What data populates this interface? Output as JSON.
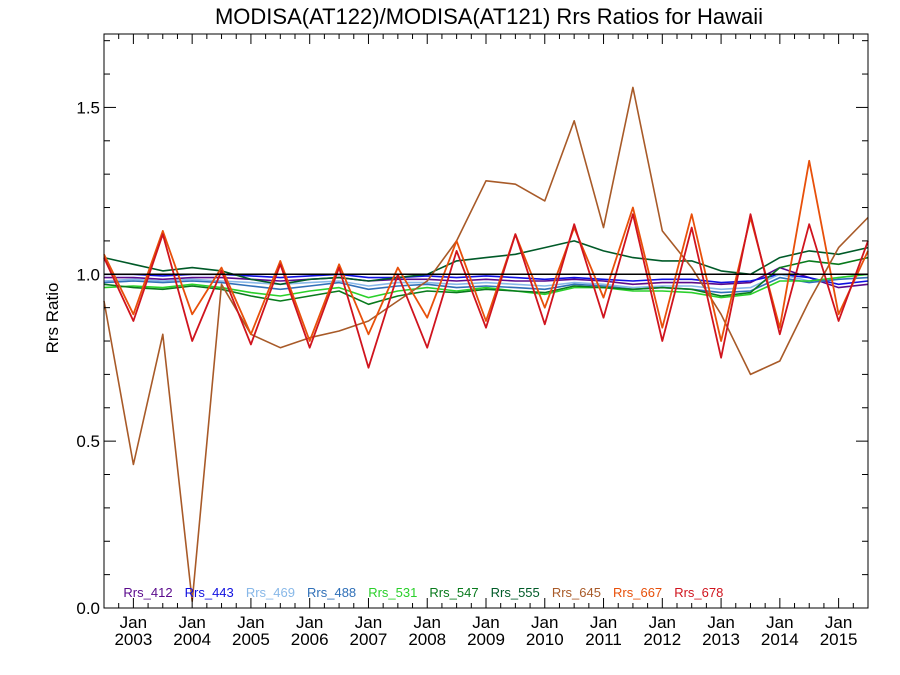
{
  "chart_data": {
    "type": "line",
    "title": "MODISA(AT122)/MODISA(AT121)  Rrs Ratios for Hawaii",
    "xlabel": "",
    "ylabel": "Rrs Ratio",
    "xlim": [
      "2002-07",
      "2015-07"
    ],
    "ylim": [
      0.0,
      1.72
    ],
    "grid": false,
    "legend_position": "bottom",
    "reference_line": 1.0,
    "x_ticks": [
      {
        "x": "2003-01",
        "top": "Jan",
        "bottom": "2003"
      },
      {
        "x": "2004-01",
        "top": "Jan",
        "bottom": "2004"
      },
      {
        "x": "2005-01",
        "top": "Jan",
        "bottom": "2005"
      },
      {
        "x": "2006-01",
        "top": "Jan",
        "bottom": "2006"
      },
      {
        "x": "2007-01",
        "top": "Jan",
        "bottom": "2007"
      },
      {
        "x": "2008-01",
        "top": "Jan",
        "bottom": "2008"
      },
      {
        "x": "2009-01",
        "top": "Jan",
        "bottom": "2009"
      },
      {
        "x": "2010-01",
        "top": "Jan",
        "bottom": "2010"
      },
      {
        "x": "2011-01",
        "top": "Jan",
        "bottom": "2011"
      },
      {
        "x": "2012-01",
        "top": "Jan",
        "bottom": "2012"
      },
      {
        "x": "2013-01",
        "top": "Jan",
        "bottom": "2013"
      },
      {
        "x": "2014-01",
        "top": "Jan",
        "bottom": "2014"
      },
      {
        "x": "2015-01",
        "top": "Jan",
        "bottom": "2015"
      }
    ],
    "y_ticks": [
      {
        "value": 0.0,
        "label": "0.0"
      },
      {
        "value": 0.5,
        "label": "0.5"
      },
      {
        "value": 1.0,
        "label": "1.0"
      },
      {
        "value": 1.5,
        "label": "1.5"
      }
    ],
    "x": [
      "2002-07",
      "2003-01",
      "2003-07",
      "2004-01",
      "2004-07",
      "2005-01",
      "2005-07",
      "2006-01",
      "2006-07",
      "2007-01",
      "2007-07",
      "2008-01",
      "2008-07",
      "2009-01",
      "2009-07",
      "2010-01",
      "2010-07",
      "2011-01",
      "2011-07",
      "2012-01",
      "2012-07",
      "2013-01",
      "2013-07",
      "2014-01",
      "2014-07",
      "2015-01",
      "2015-07"
    ],
    "series": [
      {
        "name": "Rrs_412",
        "color": "#5a0a8c",
        "width": 1.6,
        "values": [
          0.99,
          0.99,
          0.985,
          0.99,
          0.99,
          0.985,
          0.98,
          0.985,
          0.99,
          0.98,
          0.985,
          0.985,
          0.98,
          0.985,
          0.98,
          0.98,
          0.985,
          0.98,
          0.97,
          0.975,
          0.975,
          0.97,
          0.975,
          1.02,
          0.99,
          0.96,
          0.97
        ]
      },
      {
        "name": "Rrs_443",
        "color": "#1010e0",
        "width": 1.6,
        "values": [
          1.0,
          1.0,
          0.995,
          1.0,
          1.0,
          0.995,
          0.99,
          0.995,
          1.0,
          0.99,
          0.99,
          0.995,
          0.99,
          0.995,
          0.99,
          0.985,
          0.99,
          0.985,
          0.98,
          0.985,
          0.985,
          0.975,
          0.98,
          1.0,
          0.99,
          0.97,
          0.98
        ]
      },
      {
        "name": "Rrs_469",
        "color": "#88b8e8",
        "width": 1.6,
        "values": [
          0.98,
          0.985,
          0.98,
          0.985,
          0.98,
          0.975,
          0.97,
          0.975,
          0.98,
          0.965,
          0.975,
          0.975,
          0.97,
          0.975,
          0.97,
          0.965,
          0.975,
          0.97,
          0.96,
          0.965,
          0.965,
          0.955,
          0.96,
          1.0,
          0.98,
          0.99,
          1.0
        ]
      },
      {
        "name": "Rrs_488",
        "color": "#3070b8",
        "width": 1.6,
        "values": [
          0.975,
          0.98,
          0.975,
          0.98,
          0.975,
          0.965,
          0.955,
          0.965,
          0.975,
          0.955,
          0.965,
          0.97,
          0.96,
          0.965,
          0.96,
          0.955,
          0.97,
          0.965,
          0.955,
          0.96,
          0.955,
          0.945,
          0.95,
          0.99,
          0.975,
          0.985,
          0.99
        ]
      },
      {
        "name": "Rrs_531",
        "color": "#2ad02a",
        "width": 1.6,
        "values": [
          0.96,
          0.965,
          0.96,
          0.97,
          0.96,
          0.945,
          0.935,
          0.95,
          0.96,
          0.93,
          0.95,
          0.96,
          0.95,
          0.96,
          0.95,
          0.94,
          0.96,
          0.96,
          0.95,
          0.95,
          0.945,
          0.93,
          0.94,
          0.98,
          0.98,
          0.99,
          1.0
        ]
      },
      {
        "name": "Rrs_547",
        "color": "#087a1c",
        "width": 1.6,
        "values": [
          0.97,
          0.96,
          0.955,
          0.965,
          0.955,
          0.935,
          0.92,
          0.935,
          0.95,
          0.91,
          0.935,
          0.95,
          0.945,
          0.955,
          0.95,
          0.945,
          0.965,
          0.96,
          0.955,
          0.96,
          0.955,
          0.935,
          0.945,
          1.02,
          1.04,
          1.03,
          1.05
        ]
      },
      {
        "name": "Rrs_555",
        "color": "#005a28",
        "width": 1.6,
        "values": [
          1.05,
          1.03,
          1.01,
          1.02,
          1.01,
          0.985,
          0.97,
          0.985,
          0.99,
          0.98,
          0.99,
          1.0,
          1.04,
          1.05,
          1.06,
          1.08,
          1.1,
          1.07,
          1.05,
          1.04,
          1.04,
          1.01,
          1.0,
          1.05,
          1.07,
          1.06,
          1.08
        ]
      },
      {
        "name": "Rrs_645",
        "color": "#a85a28",
        "width": 1.6,
        "values": [
          0.92,
          0.43,
          0.82,
          0.02,
          0.97,
          0.82,
          0.78,
          0.81,
          0.83,
          0.86,
          0.92,
          0.98,
          1.1,
          1.28,
          1.27,
          1.22,
          1.46,
          1.14,
          1.56,
          1.13,
          1.02,
          0.88,
          0.7,
          0.74,
          0.92,
          1.08,
          1.17
        ]
      },
      {
        "name": "Rrs_667",
        "color": "#e8500a",
        "width": 1.8,
        "values": [
          1.06,
          0.88,
          1.13,
          0.88,
          1.02,
          0.82,
          1.04,
          0.8,
          1.03,
          0.82,
          1.02,
          0.87,
          1.1,
          0.86,
          1.12,
          0.9,
          1.14,
          0.93,
          1.2,
          0.84,
          1.18,
          0.8,
          1.17,
          0.84,
          1.34,
          0.88,
          1.07
        ]
      },
      {
        "name": "Rrs_678",
        "color": "#d0141e",
        "width": 1.8,
        "values": [
          1.05,
          0.86,
          1.12,
          0.8,
          1.01,
          0.79,
          1.03,
          0.78,
          1.02,
          0.72,
          1.0,
          0.78,
          1.07,
          0.84,
          1.12,
          0.85,
          1.15,
          0.87,
          1.18,
          0.8,
          1.14,
          0.75,
          1.18,
          0.82,
          1.15,
          0.86,
          1.1
        ]
      }
    ]
  }
}
